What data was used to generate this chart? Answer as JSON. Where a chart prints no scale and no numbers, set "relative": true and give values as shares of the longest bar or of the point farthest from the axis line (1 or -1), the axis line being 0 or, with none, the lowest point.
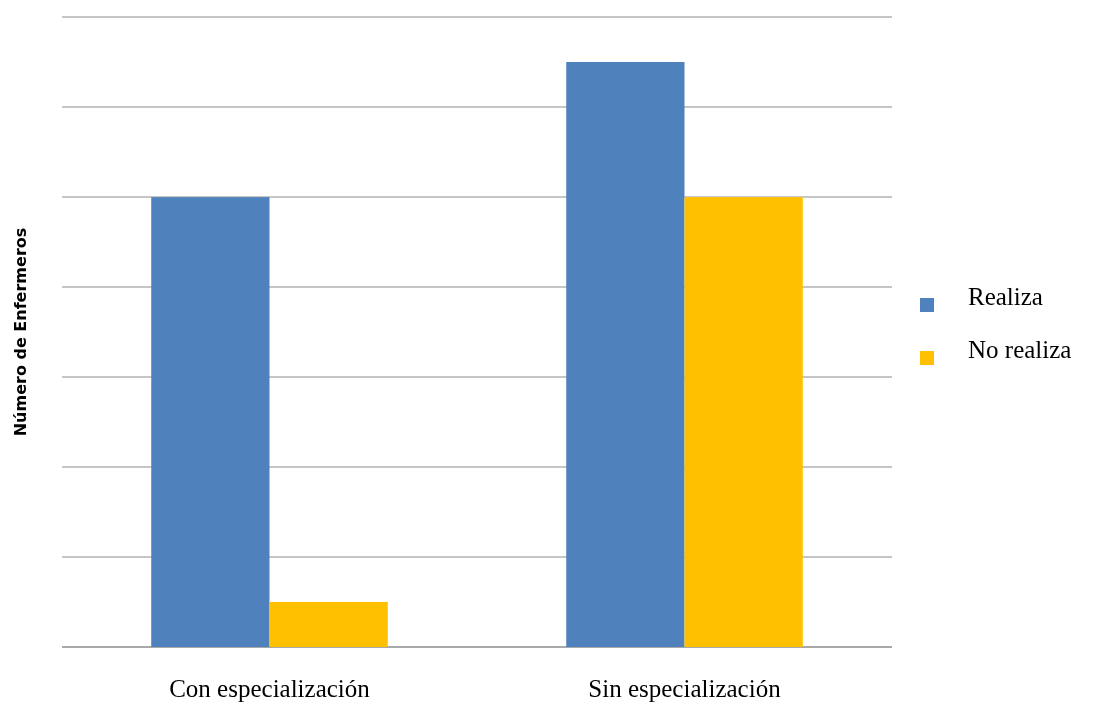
{
  "chart_data": {
    "type": "bar",
    "ylabel": "Número de Enfermeros",
    "categories": [
      "Con especialización",
      "Sin especialización"
    ],
    "relative": true,
    "grid": "y",
    "legend": "right",
    "series": [
      {
        "name": "Realiza",
        "color": "#4f81bd",
        "values": [
          0.769,
          1
        ]
      },
      {
        "name": "No realiza",
        "color": "#ffc000",
        "values": [
          0.077,
          0.769
        ]
      }
    ]
  }
}
